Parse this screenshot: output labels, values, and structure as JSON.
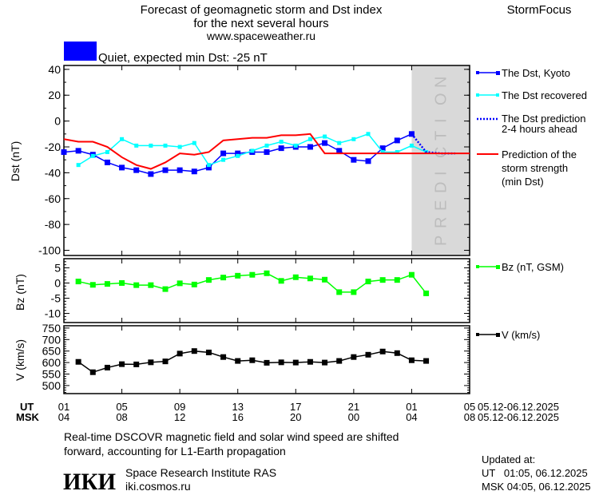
{
  "header": {
    "title_line1": "Forecast of geomagnetic storm and Dst index",
    "title_line2": "for the next several hours",
    "url": "www.spaceweather.ru",
    "brand": "StormFocus"
  },
  "status": {
    "color": "#0000ff",
    "text": "Quiet, expected min Dst: -25 nT"
  },
  "prediction_zone": {
    "label": "PREDICTION",
    "start": "06.12 01:00",
    "color": "#d9d9d9"
  },
  "time_axis": {
    "ut_label": "UT",
    "msk_label": "MSK",
    "ut_ticks": [
      "01",
      "05",
      "09",
      "13",
      "17",
      "21",
      "01",
      "05"
    ],
    "msk_ticks": [
      "04",
      "08",
      "12",
      "16",
      "20",
      "00",
      "04",
      "08"
    ],
    "ut_range": "05.12-06.12.2025",
    "msk_range": "05.12-06.12.2025",
    "range_ut": [
      "05.12 01:00",
      "06.12 05:00"
    ]
  },
  "legend": {
    "dst_kyoto": "The Dst, Kyoto",
    "dst_recovered": "The Dst recovered",
    "dst_prediction_1": "The Dst prediction",
    "dst_prediction_2": "2-4 hours ahead",
    "storm_strength_1": "Prediction of the",
    "storm_strength_2": "storm strength",
    "storm_strength_3": "(min Dst)",
    "bz": "Bz (nT, GSM)",
    "v": "V (km/s)"
  },
  "chart_data": [
    {
      "type": "line",
      "ylabel": "Dst (nT)",
      "ylim": [
        -104,
        43
      ],
      "yticks": [
        "40",
        "20",
        "0",
        "-20",
        "-40",
        "-60",
        "-80",
        "-100"
      ],
      "series": [
        {
          "name": "The Dst, Kyoto",
          "color": "#0000ff",
          "marker": "square",
          "t": [
            "05.12 01:00",
            "05.12 02:00",
            "05.12 03:00",
            "05.12 04:00",
            "05.12 05:00",
            "05.12 06:00",
            "05.12 07:00",
            "05.12 08:00",
            "05.12 09:00",
            "05.12 10:00",
            "05.12 11:00",
            "05.12 12:00",
            "05.12 13:00",
            "05.12 14:00",
            "05.12 15:00",
            "05.12 16:00",
            "05.12 17:00",
            "05.12 18:00",
            "05.12 19:00",
            "05.12 20:00",
            "05.12 21:00",
            "05.12 22:00",
            "05.12 23:00",
            "06.12 00:00",
            "06.12 01:00"
          ],
          "values": [
            -24,
            -23,
            -26,
            -32,
            -36,
            -38,
            -41,
            -38,
            -38,
            -39,
            -36,
            -25,
            -25,
            -24,
            -24,
            -21,
            -20,
            -20,
            -17,
            -23,
            -30,
            -31,
            -21,
            -15,
            -10
          ]
        },
        {
          "name": "The Dst recovered",
          "color": "#00ffff",
          "marker": "square-small",
          "t": [
            "05.12 02:00",
            "05.12 03:00",
            "05.12 04:00",
            "05.12 05:00",
            "05.12 06:00",
            "05.12 07:00",
            "05.12 08:00",
            "05.12 09:00",
            "05.12 10:00",
            "05.12 11:00",
            "05.12 12:00",
            "05.12 13:00",
            "05.12 14:00",
            "05.12 15:00",
            "05.12 16:00",
            "05.12 17:00",
            "05.12 18:00",
            "05.12 19:00",
            "05.12 20:00",
            "05.12 21:00",
            "05.12 22:00",
            "05.12 23:00",
            "06.12 00:00",
            "06.12 01:00",
            "06.12 02:00"
          ],
          "values": [
            -34,
            -27,
            -24,
            -14,
            -19,
            -19,
            -19,
            -20,
            -17,
            -34,
            -30,
            -27,
            -23,
            -19,
            -16,
            -19,
            -14,
            -12,
            -17,
            -14,
            -10,
            -24,
            -24,
            -19,
            -24
          ]
        },
        {
          "name": "The Dst prediction 2-4 hours ahead",
          "color": "#0000ff",
          "style": "dotted",
          "t": [
            "06.12 01:00",
            "06.12 02:00",
            "06.12 03:00",
            "06.12 04:00"
          ],
          "values": [
            -10,
            -24,
            -25,
            -25
          ]
        },
        {
          "name": "Prediction of the storm strength (min Dst)",
          "color": "#ff0000",
          "style": "solid",
          "t": [
            "05.12 01:00",
            "05.12 02:00",
            "05.12 03:00",
            "05.12 04:00",
            "05.12 05:00",
            "05.12 06:00",
            "05.12 07:00",
            "05.12 08:00",
            "05.12 09:00",
            "05.12 10:00",
            "05.12 11:00",
            "05.12 12:00",
            "05.12 13:00",
            "05.12 14:00",
            "05.12 15:00",
            "05.12 16:00",
            "05.12 17:00",
            "05.12 18:00",
            "05.12 19:00",
            "06.12 05:00"
          ],
          "values": [
            -14,
            -16,
            -16,
            -20,
            -28,
            -34,
            -37,
            -32,
            -25,
            -26,
            -24,
            -15,
            -14,
            -13,
            -13,
            -11,
            -11,
            -10,
            -25,
            -25
          ]
        }
      ]
    },
    {
      "type": "line",
      "ylabel": "Bz (nT)",
      "ylim": [
        -13,
        8
      ],
      "yticks": [
        "5",
        "0",
        "-5",
        "-10"
      ],
      "series": [
        {
          "name": "Bz (nT, GSM)",
          "color": "#00ff00",
          "marker": "square",
          "t": [
            "05.12 02:00",
            "05.12 03:00",
            "05.12 04:00",
            "05.12 05:00",
            "05.12 06:00",
            "05.12 07:00",
            "05.12 08:00",
            "05.12 09:00",
            "05.12 10:00",
            "05.12 11:00",
            "05.12 12:00",
            "05.12 13:00",
            "05.12 14:00",
            "05.12 15:00",
            "05.12 16:00",
            "05.12 17:00",
            "05.12 18:00",
            "05.12 19:00",
            "05.12 20:00",
            "05.12 21:00",
            "05.12 22:00",
            "05.12 23:00",
            "06.12 00:00",
            "06.12 01:00",
            "06.12 02:00"
          ],
          "values": [
            0.5,
            -0.6,
            -0.3,
            0,
            -0.7,
            -0.7,
            -2,
            -0.1,
            -0.5,
            1,
            1.8,
            2.4,
            2.7,
            3.2,
            0.7,
            1.9,
            1.5,
            1.1,
            -3,
            -3,
            0.5,
            1,
            1,
            2.7,
            -3.4
          ]
        }
      ]
    },
    {
      "type": "line",
      "ylabel": "V (km/s)",
      "ylim": [
        465,
        760
      ],
      "yticks": [
        "750",
        "700",
        "650",
        "600",
        "550",
        "500"
      ],
      "series": [
        {
          "name": "V (km/s)",
          "color": "#000000",
          "marker": "square",
          "t": [
            "05.12 02:00",
            "05.12 03:00",
            "05.12 04:00",
            "05.12 05:00",
            "05.12 06:00",
            "05.12 07:00",
            "05.12 08:00",
            "05.12 09:00",
            "05.12 10:00",
            "05.12 11:00",
            "05.12 12:00",
            "05.12 13:00",
            "05.12 14:00",
            "05.12 15:00",
            "05.12 16:00",
            "05.12 17:00",
            "05.12 18:00",
            "05.12 19:00",
            "05.12 20:00",
            "05.12 21:00",
            "05.12 22:00",
            "05.12 23:00",
            "06.12 00:00",
            "06.12 01:00",
            "06.12 02:00"
          ],
          "values": [
            603,
            558,
            578,
            593,
            592,
            601,
            605,
            639,
            650,
            644,
            624,
            607,
            610,
            599,
            601,
            600,
            603,
            600,
            607,
            624,
            634,
            648,
            641,
            610,
            607
          ]
        }
      ]
    }
  ],
  "footer": {
    "note_line1": "Real-time DSCOVR magnetic field and solar wind speed are shifted",
    "note_line2": "forward, accounting for L1-Earth propagation",
    "logo": "ИКИ",
    "institute": "Space Research Institute RAS",
    "institute_url": "iki.cosmos.ru",
    "updated_label": "Updated at:",
    "updated_ut": "UT   01:05, 06.12.2025",
    "updated_msk": "MSK 04:05, 06.12.2025"
  }
}
